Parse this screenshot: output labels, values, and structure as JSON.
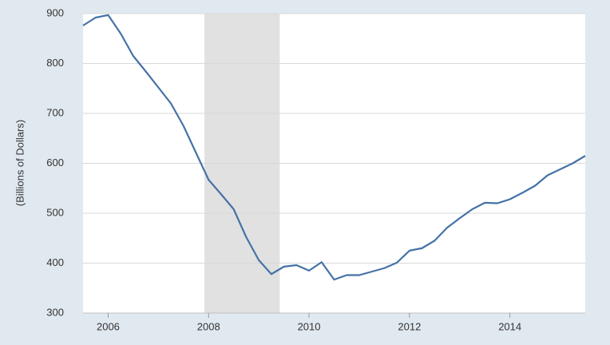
{
  "chart_data": {
    "type": "line",
    "y_label": "(Billions of Dollars)",
    "x": [
      2005.5,
      2005.75,
      2006,
      2006.25,
      2006.5,
      2006.75,
      2007,
      2007.25,
      2007.5,
      2007.75,
      2008,
      2008.25,
      2008.5,
      2008.75,
      2009,
      2009.25,
      2009.5,
      2009.75,
      2010,
      2010.25,
      2010.5,
      2010.75,
      2011,
      2011.25,
      2011.5,
      2011.75,
      2012,
      2012.25,
      2012.5,
      2012.75,
      2013,
      2013.25,
      2013.5,
      2013.75,
      2014,
      2014.25,
      2014.5,
      2014.75,
      2015,
      2015.25,
      2015.5
    ],
    "series": [
      {
        "color": "#4572a7",
        "values": [
          876,
          892,
          897,
          860,
          815,
          784,
          752,
          720,
          675,
          621,
          567,
          538,
          508,
          452,
          406,
          378,
          393,
          396,
          385,
          402,
          367,
          376,
          376,
          383,
          390,
          401,
          425,
          430,
          445,
          471,
          490,
          508,
          521,
          520,
          528,
          541,
          555,
          576,
          588,
          600,
          615
        ]
      }
    ],
    "shaded_periods": [
      [
        2007.917,
        2009.417
      ]
    ],
    "shade_color": "#e1e1e1",
    "xlim": [
      2005.5,
      2015.5
    ],
    "xticks": [
      2006,
      2008,
      2010,
      2012,
      2014
    ],
    "ylim": [
      300,
      900
    ],
    "yticks": [
      300,
      400,
      500,
      600,
      700,
      800,
      900
    ],
    "grid": true
  }
}
